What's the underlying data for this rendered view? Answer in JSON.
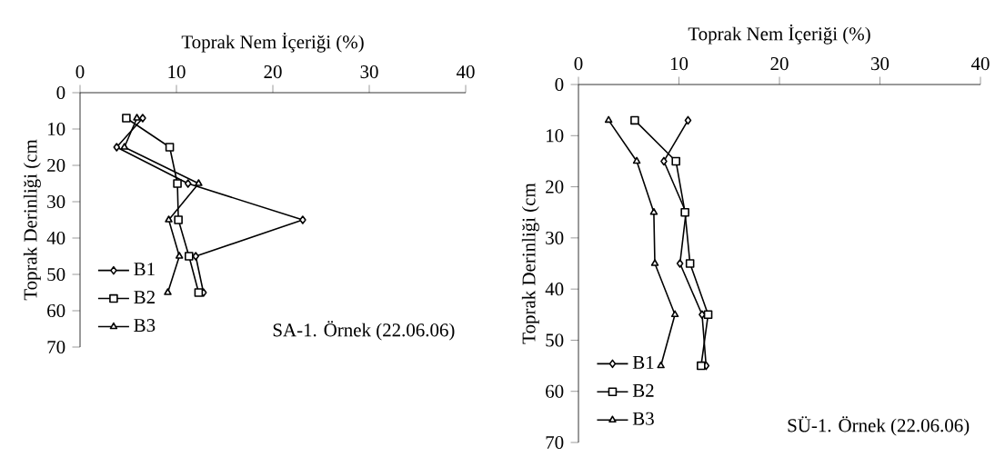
{
  "chart_data": [
    {
      "type": "line",
      "xlabel": "Toprak Nem İçeriği (%)",
      "ylabel": "Toprak Derinliği (cm",
      "annotations": [
        "SA-1. Örnek (22.06.06)"
      ],
      "xlim": [
        0,
        40
      ],
      "xticks": [
        0,
        10,
        20,
        30,
        40
      ],
      "ylim": [
        70,
        0
      ],
      "yticks": [
        0,
        10,
        20,
        30,
        40,
        50,
        60,
        70
      ],
      "legend": "bottom left",
      "grid": false,
      "line_style": "solid",
      "series": [
        {
          "name": "B1",
          "color": "#000000",
          "marker": "diamond",
          "x": [
            6.5,
            3.8,
            11.2,
            23.1,
            12.0,
            12.8
          ],
          "values": [
            7,
            15,
            25,
            35,
            45,
            55
          ]
        },
        {
          "name": "B2",
          "color": "#000000",
          "marker": "square",
          "x": [
            4.8,
            9.3,
            10.1,
            10.2,
            11.3,
            12.3
          ],
          "values": [
            7,
            15,
            25,
            35,
            45,
            55
          ]
        },
        {
          "name": "B3",
          "color": "#000000",
          "marker": "triangle",
          "x": [
            5.9,
            4.6,
            12.3,
            9.2,
            10.3,
            9.1
          ],
          "values": [
            7,
            15,
            25,
            35,
            45,
            55
          ]
        }
      ]
    },
    {
      "type": "line",
      "xlabel": "Toprak Nem İçeriği (%)",
      "ylabel": "Toprak Derinliği (cm",
      "annotations": [
        "SÜ-1. Örnek (22.06.06)"
      ],
      "xlim": [
        0,
        40
      ],
      "xticks": [
        0,
        10,
        20,
        30,
        40
      ],
      "ylim": [
        70,
        0
      ],
      "yticks": [
        0,
        10,
        20,
        30,
        40,
        50,
        60,
        70
      ],
      "legend": "bottom left",
      "grid": false,
      "line_style": "solid",
      "series": [
        {
          "name": "B1",
          "color": "#000000",
          "marker": "diamond",
          "x": [
            10.9,
            8.5,
            10.7,
            10.1,
            12.3,
            12.7
          ],
          "values": [
            7,
            15,
            25,
            35,
            45,
            55
          ]
        },
        {
          "name": "B2",
          "color": "#000000",
          "marker": "square",
          "x": [
            5.6,
            9.7,
            10.6,
            11.1,
            12.9,
            12.2
          ],
          "values": [
            7,
            15,
            25,
            35,
            45,
            55
          ]
        },
        {
          "name": "B3",
          "color": "#000000",
          "marker": "triangle",
          "x": [
            3.0,
            5.8,
            7.5,
            7.6,
            9.6,
            8.2
          ],
          "values": [
            7,
            15,
            25,
            35,
            45,
            55
          ]
        }
      ]
    }
  ]
}
